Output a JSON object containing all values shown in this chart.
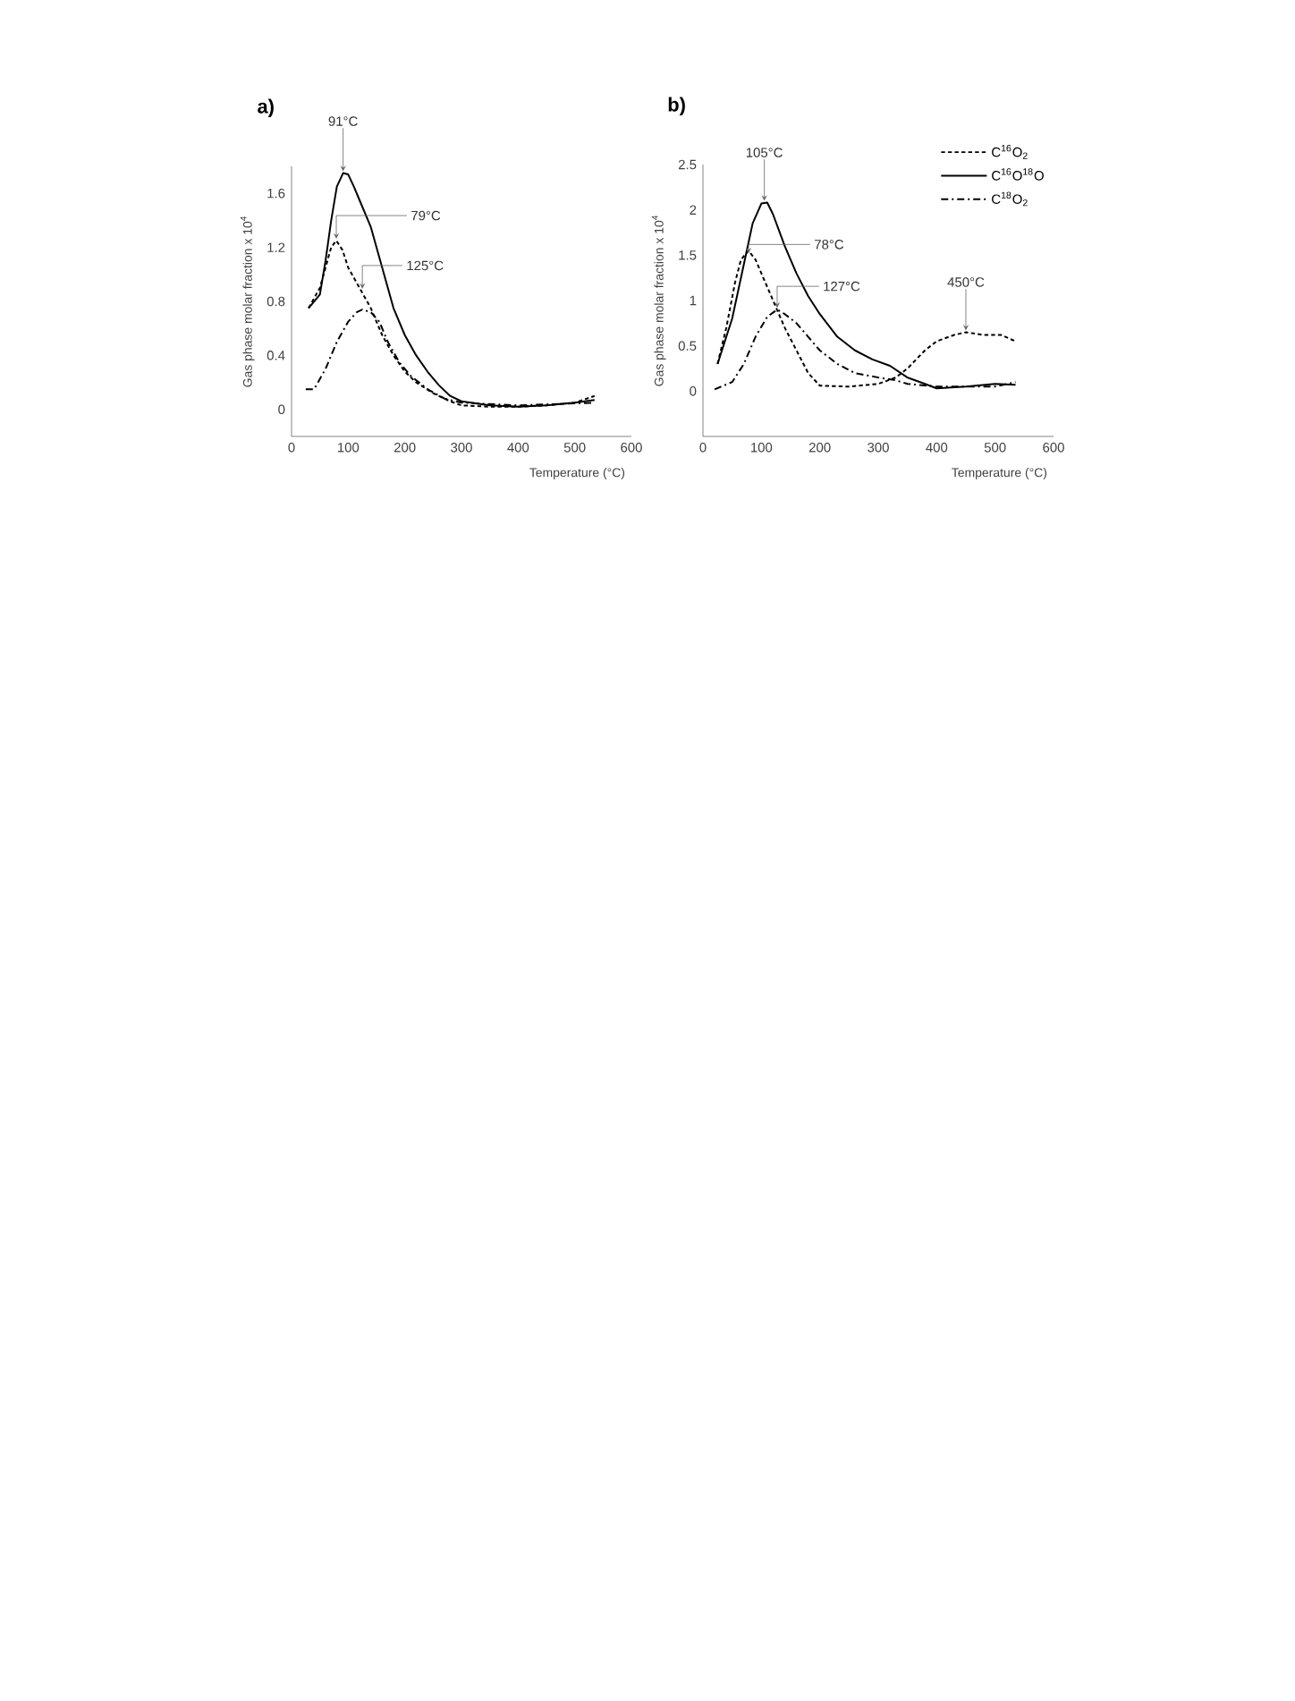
{
  "chart_data": [
    {
      "type": "line",
      "title": "a)",
      "xlabel": "Temperature (°C)",
      "ylabel": "Gas phase molar fraction x 10$^{4}$",
      "xlim": [
        0,
        600
      ],
      "xticks": [
        0,
        100,
        200,
        300,
        400,
        500,
        600
      ],
      "ylim": [
        -0.2,
        1.8
      ],
      "yticks": [
        0,
        0.4,
        0.8,
        1.2,
        1.6
      ],
      "grid": false,
      "legend": false,
      "marker": "none",
      "series": [
        {
          "color": "#000000",
          "line_style": "dashed",
          "x": [
            30,
            50,
            60,
            70,
            79,
            90,
            100,
            120,
            140,
            160,
            180,
            200,
            220,
            250,
            280,
            300,
            350,
            400,
            450,
            500,
            535
          ],
          "values": [
            0.75,
            0.9,
            1.05,
            1.2,
            1.25,
            1.18,
            1.05,
            0.9,
            0.75,
            0.55,
            0.4,
            0.28,
            0.2,
            0.12,
            0.06,
            0.03,
            0.02,
            0.02,
            0.03,
            0.05,
            0.1
          ]
        },
        {
          "color": "#000000",
          "line_style": "solid",
          "x": [
            30,
            50,
            60,
            70,
            80,
            91,
            100,
            110,
            120,
            140,
            160,
            180,
            200,
            220,
            240,
            260,
            280,
            300,
            350,
            400,
            450,
            500,
            535
          ],
          "values": [
            0.75,
            0.85,
            1.1,
            1.4,
            1.65,
            1.75,
            1.74,
            1.65,
            1.55,
            1.35,
            1.05,
            0.75,
            0.55,
            0.4,
            0.28,
            0.18,
            0.1,
            0.06,
            0.03,
            0.02,
            0.03,
            0.05,
            0.07
          ]
        },
        {
          "color": "#000000",
          "line_style": "dashdot",
          "x": [
            25,
            40,
            60,
            80,
            100,
            115,
            125,
            140,
            155,
            170,
            190,
            210,
            240,
            270,
            300,
            400,
            535
          ],
          "values": [
            0.15,
            0.15,
            0.3,
            0.5,
            0.65,
            0.72,
            0.74,
            0.72,
            0.65,
            0.5,
            0.35,
            0.25,
            0.15,
            0.08,
            0.05,
            0.03,
            0.05
          ]
        }
      ],
      "annotations": [
        {
          "text": "91°C",
          "x": 91,
          "y": 1.75
        },
        {
          "text": "79°C",
          "x": 79,
          "y": 1.25
        },
        {
          "text": "125°C",
          "x": 125,
          "y": 0.88
        }
      ]
    },
    {
      "type": "line",
      "title": "b)",
      "xlabel": "Temperature (°C)",
      "ylabel": "Gas phase molar fraction x 10$^{4}$",
      "xlim": [
        0,
        600
      ],
      "xticks": [
        0,
        100,
        200,
        300,
        400,
        500,
        600
      ],
      "ylim": [
        -0.5,
        2.5
      ],
      "yticks": [
        0,
        0.5,
        1,
        1.5,
        2,
        2.5
      ],
      "grid": false,
      "legend": "top right",
      "marker": "none",
      "series": [
        {
          "name": "C$^{16}$O$_{2}$",
          "color": "#000000",
          "line_style": "dashed",
          "x": [
            25,
            40,
            55,
            65,
            78,
            90,
            100,
            120,
            140,
            160,
            180,
            200,
            250,
            300,
            330,
            350,
            380,
            400,
            430,
            450,
            480,
            510,
            535
          ],
          "values": [
            0.3,
            0.7,
            1.2,
            1.45,
            1.55,
            1.45,
            1.3,
            1.0,
            0.7,
            0.45,
            0.2,
            0.06,
            0.05,
            0.08,
            0.15,
            0.25,
            0.45,
            0.55,
            0.62,
            0.65,
            0.62,
            0.62,
            0.55
          ]
        },
        {
          "name": "C$^{16}$O$^{18}$O",
          "color": "#000000",
          "line_style": "solid",
          "x": [
            25,
            50,
            70,
            85,
            100,
            110,
            120,
            140,
            160,
            180,
            200,
            230,
            260,
            290,
            320,
            350,
            380,
            400,
            450,
            500,
            535
          ],
          "values": [
            0.3,
            0.8,
            1.4,
            1.85,
            2.07,
            2.08,
            1.95,
            1.6,
            1.3,
            1.05,
            0.85,
            0.6,
            0.45,
            0.35,
            0.28,
            0.15,
            0.08,
            0.03,
            0.05,
            0.08,
            0.07
          ]
        },
        {
          "name": "C$^{18}$O$_{2}$",
          "color": "#000000",
          "line_style": "dashdot",
          "x": [
            20,
            50,
            70,
            90,
            110,
            127,
            140,
            160,
            180,
            200,
            230,
            260,
            300,
            330,
            350,
            400,
            450,
            500,
            535
          ],
          "values": [
            0.02,
            0.1,
            0.3,
            0.6,
            0.82,
            0.9,
            0.85,
            0.75,
            0.6,
            0.45,
            0.3,
            0.2,
            0.15,
            0.12,
            0.08,
            0.05,
            0.05,
            0.05,
            0.1
          ]
        }
      ],
      "annotations": [
        {
          "text": "105°C",
          "x": 105,
          "y": 2.08
        },
        {
          "text": "78°C",
          "x": 78,
          "y": 1.5
        },
        {
          "text": "127°C",
          "x": 127,
          "y": 0.9
        },
        {
          "text": "450°C",
          "x": 450,
          "y": 0.65
        }
      ]
    }
  ]
}
